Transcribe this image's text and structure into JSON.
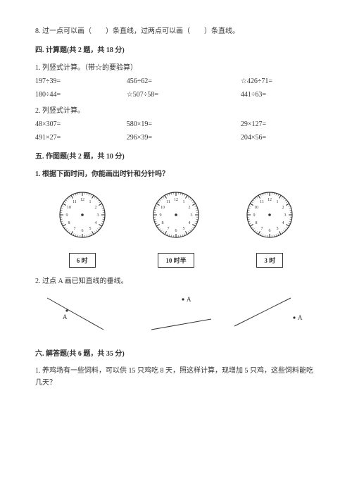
{
  "q8": "8. 过一点可以画（　　）条直线，过两点可以画（　　）条直线。",
  "sec4": {
    "title": "四. 计算题(共 2 题，共 18 分)",
    "q1": "1. 列竖式计算。（带☆的要验算）",
    "row1": {
      "a": "197÷39=",
      "b": "456÷62=",
      "c": "☆426÷71="
    },
    "row2": {
      "a": "180÷44=",
      "b": "☆507÷58=",
      "c": "441÷63="
    },
    "q2": "2. 列竖式计算。",
    "row3": {
      "a": "48×307=",
      "b": "580×19=",
      "c": "29×127="
    },
    "row4": {
      "a": "491×27=",
      "b": "296×39=",
      "c": "204×56="
    }
  },
  "sec5": {
    "title": "五. 作图题(共 2 题，共 10 分)",
    "q1": "1. 根据下面时间，你能画出时针和分针吗？",
    "q2": "2. 过点 A 画已知直线的垂线。",
    "times": {
      "a": "6 时",
      "b": "10 时半",
      "c": "3 时"
    }
  },
  "sec6": {
    "title": "六. 解答题(共 6 题，共 35 分)",
    "q1": "1. 养鸡场有一些饲料，可以供 15 只鸡吃 8 天，照这样计算，现增加 5 只鸡，这些饲料能吃几天？"
  },
  "clock": {
    "radius": 32,
    "face_color": "#ffffff",
    "stroke": "#333333",
    "numbers": [
      "12",
      "1",
      "2",
      "3",
      "4",
      "5",
      "6",
      "7",
      "8",
      "9",
      "10",
      "11"
    ],
    "num_fontsize": 6
  },
  "perp": {
    "stroke": "#333333",
    "label": "A",
    "dot_r": 1.6
  }
}
